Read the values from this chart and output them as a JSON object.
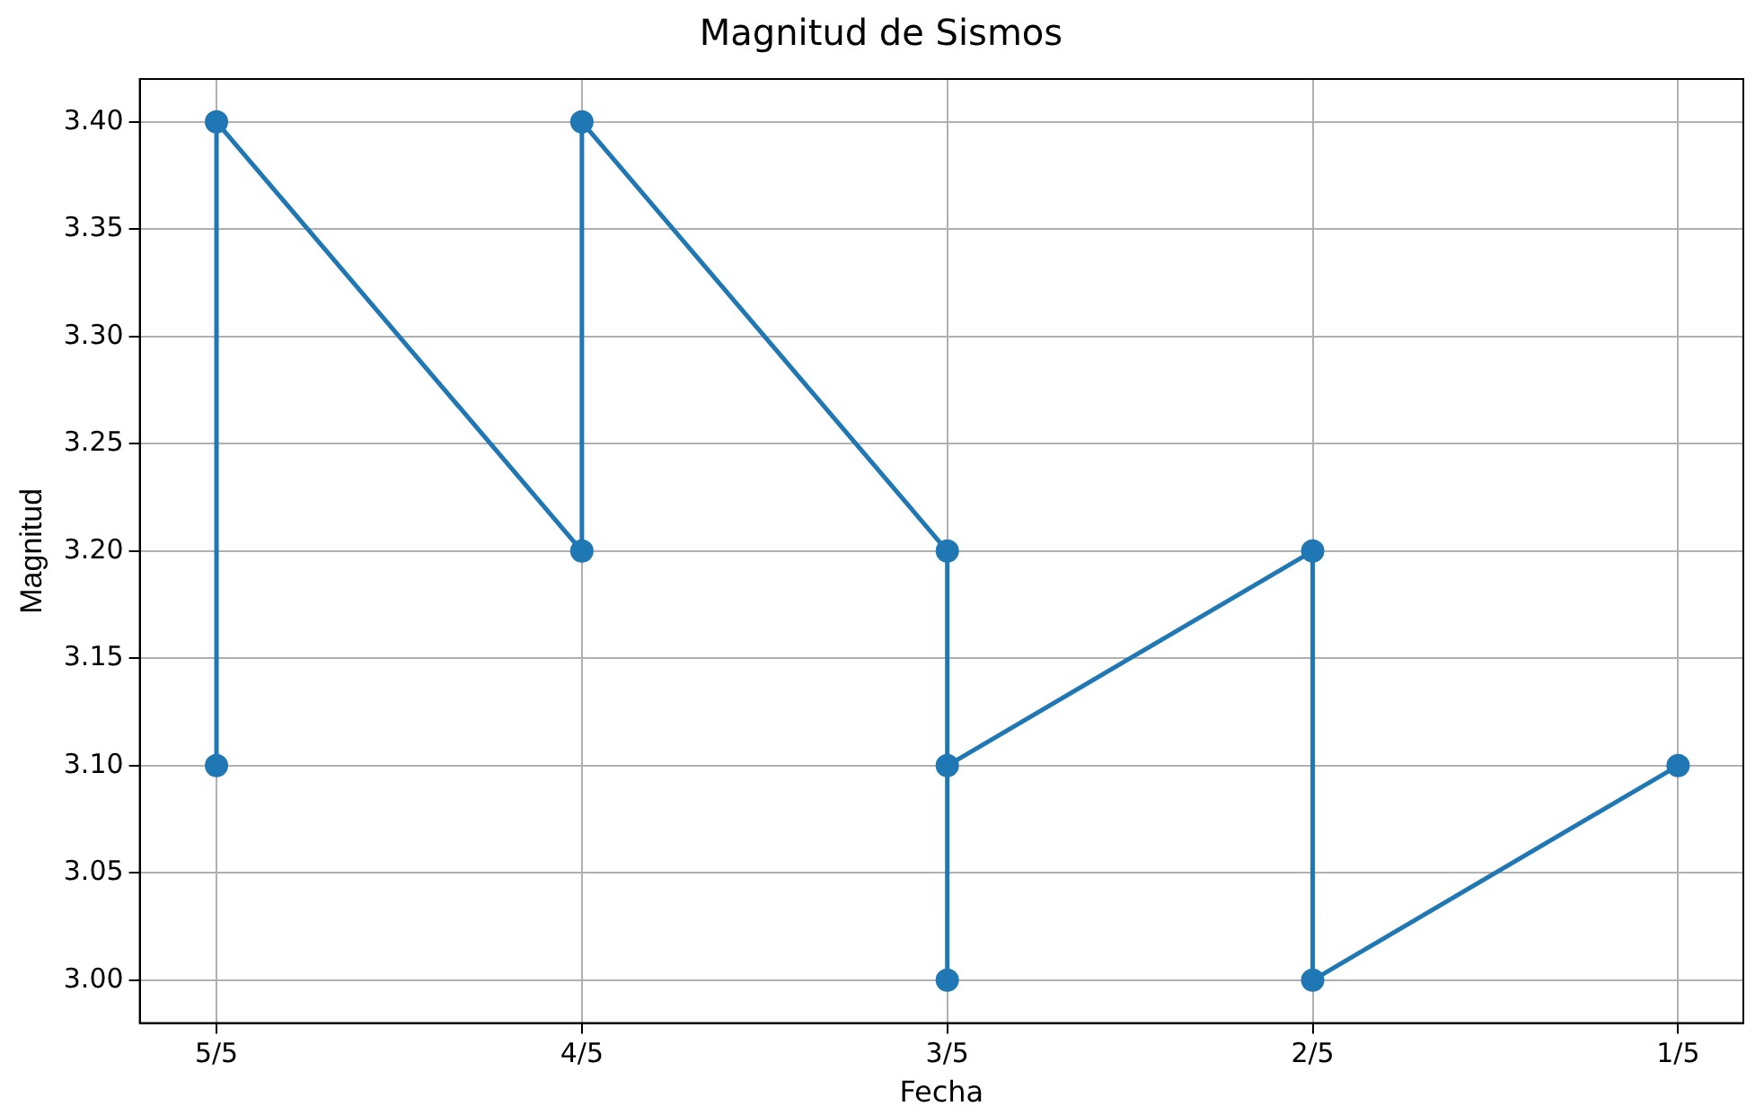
{
  "chart_data": {
    "type": "line",
    "title": "Magnitud de Sismos",
    "xlabel": "Fecha",
    "ylabel": "Magnitud",
    "categories": [
      "5/5",
      "4/5",
      "3/5",
      "2/5",
      "1/5"
    ],
    "series": [
      {
        "color": "#1f77b4",
        "x": [
          "5/5",
          "5/5",
          "4/5",
          "4/5",
          "3/5",
          "3/5",
          "3/5",
          "2/5",
          "2/5",
          "1/5"
        ],
        "values": [
          3.1,
          3.4,
          3.2,
          3.4,
          3.2,
          3.0,
          3.1,
          3.2,
          3.0,
          3.1
        ]
      }
    ],
    "ylim": [
      2.98,
      3.42
    ],
    "yticks": [
      {
        "value": 3.0,
        "label": "3.00"
      },
      {
        "value": 3.05,
        "label": "3.05"
      },
      {
        "value": 3.1,
        "label": "3.10"
      },
      {
        "value": 3.15,
        "label": "3.15"
      },
      {
        "value": 3.2,
        "label": "3.20"
      },
      {
        "value": 3.25,
        "label": "3.25"
      },
      {
        "value": 3.3,
        "label": "3.30"
      },
      {
        "value": 3.35,
        "label": "3.35"
      },
      {
        "value": 3.4,
        "label": "3.40"
      }
    ],
    "grid": true,
    "marker": "circle",
    "line_style": "solid",
    "legend": false
  }
}
